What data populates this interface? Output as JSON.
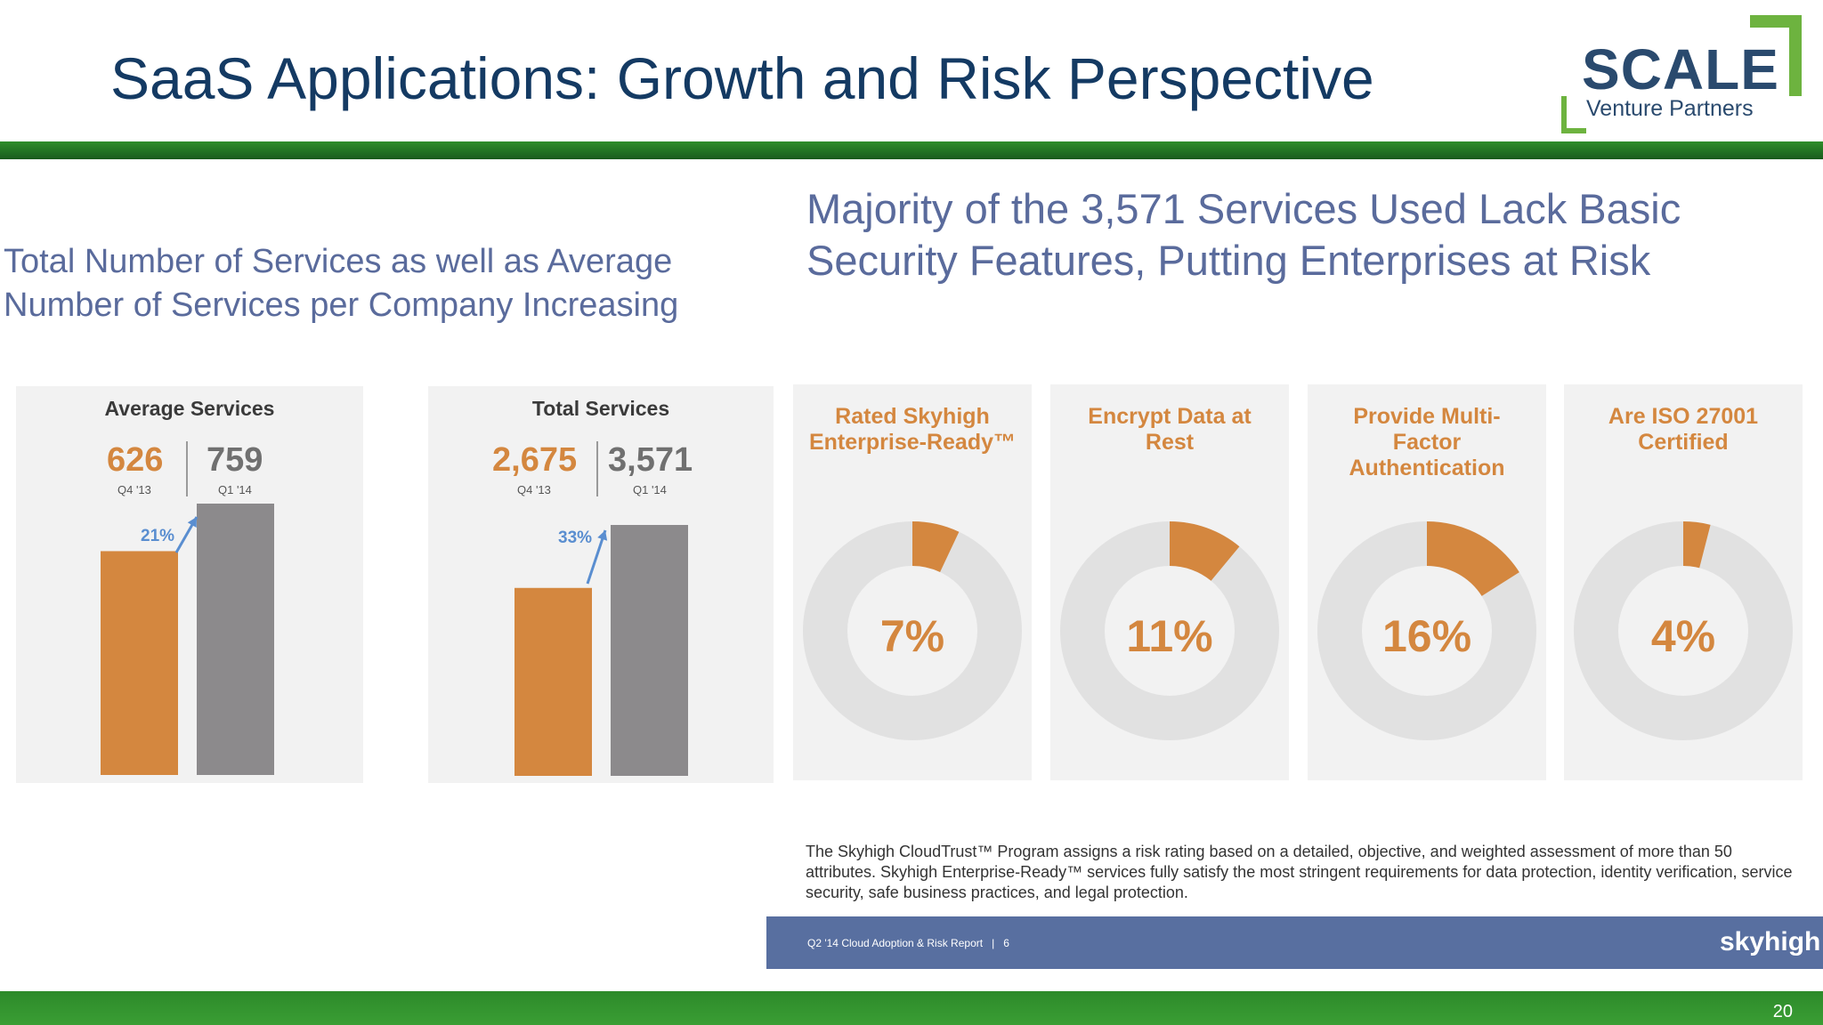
{
  "slide": {
    "title": "SaaS Applications: Growth and Risk Perspective",
    "page_number": "20"
  },
  "logo": {
    "word": "SCALE",
    "sub": "Venture Partners"
  },
  "left_heading": "Total Number of Services as well as Average Number of Services per Company Increasing",
  "right_heading": "Majority of the 3,571 Services Used Lack Basic Security Features, Putting Enterprises at Risk",
  "colors": {
    "orange": "#d4873f",
    "gray_bar": "#8c8a8c",
    "donut_track": "#e1e1e1",
    "arrow_blue": "#5a8ed0",
    "green_band": "#2f8d2a",
    "navy": "#143a63"
  },
  "chart_data": [
    {
      "type": "bar",
      "title": "Average Services",
      "categories": [
        "Q4 '13",
        "Q1 '14"
      ],
      "values": [
        626,
        759
      ],
      "value_labels": [
        "626",
        "759"
      ],
      "growth_label": "21%",
      "colors": [
        "#d4873f",
        "#8c8a8c"
      ]
    },
    {
      "type": "bar",
      "title": "Total Services",
      "categories": [
        "Q4 '13",
        "Q1 '14"
      ],
      "values": [
        2675,
        3571
      ],
      "value_labels": [
        "2,675",
        "3,571"
      ],
      "growth_label": "33%",
      "colors": [
        "#d4873f",
        "#8c8a8c"
      ]
    },
    {
      "type": "pie",
      "title": "Rated Skyhigh Enterprise-Ready™",
      "value": 7,
      "label": "7%"
    },
    {
      "type": "pie",
      "title": "Encrypt Data at Rest",
      "value": 11,
      "label": "11%"
    },
    {
      "type": "pie",
      "title": "Provide Multi-Factor Authentication",
      "value": 16,
      "label": "16%"
    },
    {
      "type": "pie",
      "title": "Are ISO 27001 Certified",
      "value": 4,
      "label": "4%"
    }
  ],
  "footnote": "The Skyhigh CloudTrust™ Program assigns a risk rating based on a detailed, objective, and weighted assessment of more than 50 attributes. Skyhigh Enterprise-Ready™ services fully satisfy the most stringent requirements for data protection, identity verification, service security, safe business practices, and legal protection.",
  "skyhigh_bar": {
    "report": "Q2 '14 Cloud Adoption & Risk Report   |   6",
    "logo": "skyhigh"
  }
}
